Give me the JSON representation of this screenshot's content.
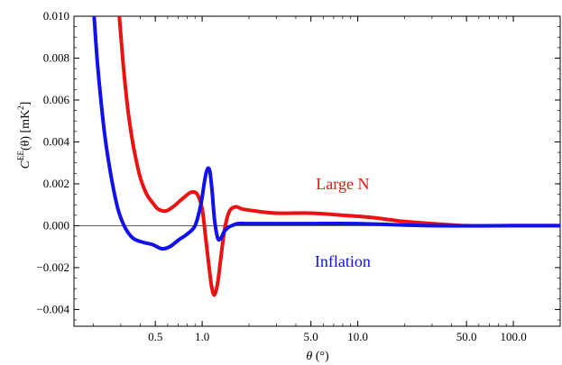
{
  "chart_data": {
    "type": "line",
    "title": "",
    "xlabel": "θ (°)",
    "ylabel": "C^EE(θ) [mK^2]",
    "ylabel_parts": {
      "main": "C",
      "sup": "EE",
      "arg": "(θ)  [mK",
      "unit_sup": "2",
      "close": "]"
    },
    "xscale": "log",
    "xlim": [
      0.15,
      200
    ],
    "ylim": [
      -0.0048,
      0.01
    ],
    "xticks": [
      0.5,
      1.0,
      5.0,
      10.0,
      50.0,
      100.0
    ],
    "xtick_labels": [
      "0.5",
      "1.0",
      "5.0",
      "10.0",
      "50.0",
      "100.0"
    ],
    "yticks": [
      0.01,
      0.008,
      0.006,
      0.004,
      0.002,
      0.0,
      -0.002,
      -0.004
    ],
    "ytick_labels": [
      "0.010",
      "0.008",
      "0.006",
      "0.004",
      "0.002",
      "0.000",
      "−0.002",
      "−0.004"
    ],
    "grid": false,
    "series": [
      {
        "name": "Large N",
        "color": "#ee1111",
        "x": [
          0.29,
          0.31,
          0.33,
          0.35,
          0.37,
          0.4,
          0.44,
          0.48,
          0.52,
          0.58,
          0.65,
          0.75,
          0.85,
          0.93,
          1.0,
          1.05,
          1.1,
          1.15,
          1.2,
          1.26,
          1.32,
          1.4,
          1.5,
          1.65,
          1.8,
          2.2,
          3.0,
          5.0,
          8.0,
          12.0,
          20.0,
          30.0,
          50.0,
          100.0,
          200.0
        ],
        "y": [
          0.0105,
          0.0078,
          0.0058,
          0.0044,
          0.0034,
          0.0023,
          0.0015,
          0.0011,
          0.0008,
          0.0007,
          0.0009,
          0.0013,
          0.0016,
          0.0015,
          0.0008,
          -0.0005,
          -0.0018,
          -0.0029,
          -0.0033,
          -0.0027,
          -0.0015,
          -0.0001,
          0.0007,
          0.0009,
          0.0008,
          0.0007,
          0.0006,
          0.0006,
          0.0005,
          0.0004,
          0.0002,
          0.0001,
          0.0,
          0.0,
          0.0
        ]
      },
      {
        "name": "Inflation",
        "color": "#1111ee",
        "x": [
          0.2,
          0.21,
          0.22,
          0.235,
          0.25,
          0.27,
          0.29,
          0.32,
          0.36,
          0.42,
          0.48,
          0.55,
          0.62,
          0.7,
          0.8,
          0.9,
          0.98,
          1.04,
          1.08,
          1.12,
          1.16,
          1.2,
          1.26,
          1.32,
          1.38,
          1.46,
          1.55,
          1.7,
          2.0,
          3.0,
          5.0,
          10.0,
          30.0,
          100.0,
          200.0
        ],
        "y": [
          0.0105,
          0.0082,
          0.0065,
          0.0045,
          0.0031,
          0.0017,
          0.0007,
          -0.0001,
          -0.0006,
          -0.0008,
          -0.0009,
          -0.0011,
          -0.001,
          -0.0007,
          -0.0004,
          0.0,
          0.001,
          0.0022,
          0.0027,
          0.0026,
          0.0016,
          0.0003,
          -0.0006,
          -0.0006,
          -0.0003,
          -0.0001,
          0.0,
          0.0001,
          0.0001,
          0.0001,
          0.0001,
          0.0001,
          0.0,
          0.0,
          0.0
        ]
      }
    ],
    "annotations": [
      {
        "text": "Large N",
        "series": "Large N",
        "x": 8.0,
        "y": 0.002
      },
      {
        "text": "Inflation",
        "series": "Inflation",
        "x": 8.0,
        "y": -0.0017
      }
    ]
  }
}
